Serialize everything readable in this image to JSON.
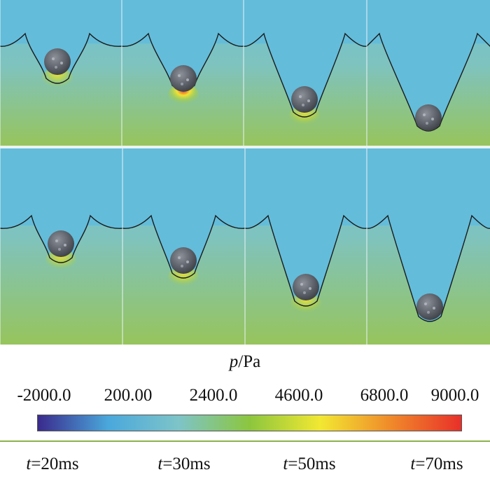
{
  "colorbar": {
    "title_symbol": "p",
    "title_unit": "/Pa",
    "ticks": [
      "-2000.0",
      "200.00",
      "2400.0",
      "4600.0",
      "6800.0",
      "9000.0"
    ],
    "gradient": [
      "#3a2a8c",
      "#4aa8dc",
      "#7ec4c8",
      "#8cc63e",
      "#f2e832",
      "#f08a2a",
      "#e8302a"
    ]
  },
  "time_labels": [
    {
      "var": "t",
      "value": "=20ms"
    },
    {
      "var": "t",
      "value": "=30ms"
    },
    {
      "var": "t",
      "value": "=50ms"
    },
    {
      "var": "t",
      "value": "=70ms"
    }
  ],
  "colors": {
    "water_top": "#63bcd9",
    "water_deep": "#79c0a0",
    "green_bottom": "#8fc160",
    "sphere": "#5a5e66",
    "interface_line": "#1a1a1a"
  }
}
